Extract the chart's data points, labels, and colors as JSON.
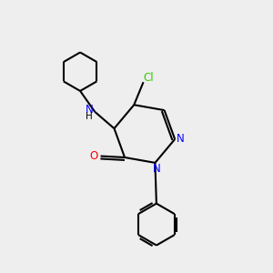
{
  "background_color": "#eeeeee",
  "bond_color": "#000000",
  "N_color": "#0000ff",
  "O_color": "#ff0000",
  "Cl_color": "#33cc00",
  "line_width": 1.5,
  "figsize": [
    3.0,
    3.0
  ],
  "dpi": 100,
  "xlim": [
    0,
    10
  ],
  "ylim": [
    0,
    10
  ]
}
